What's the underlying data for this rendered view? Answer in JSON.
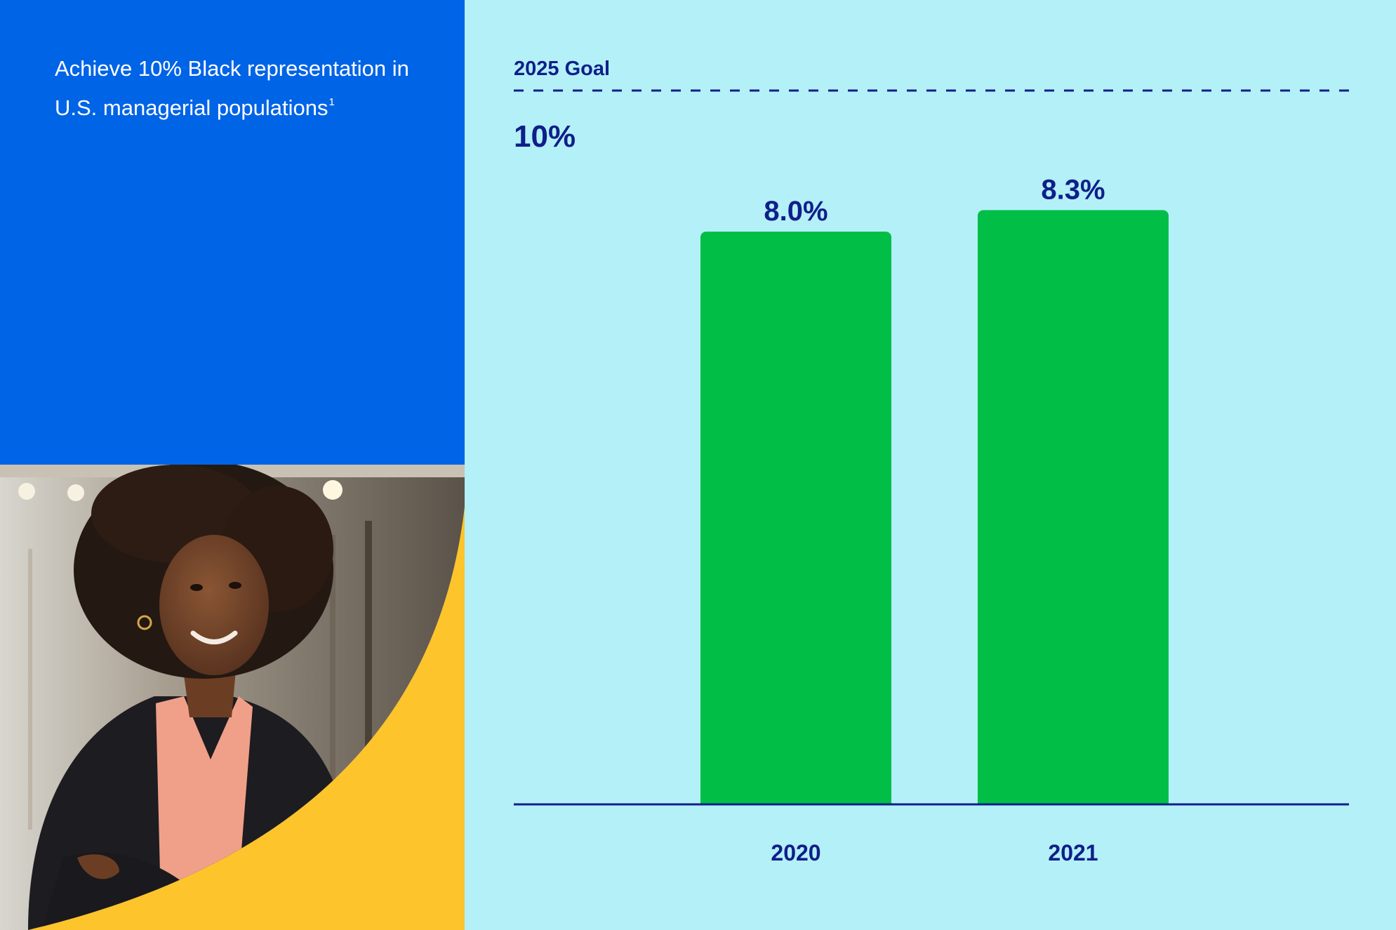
{
  "headline": {
    "text": "Achieve 10% Black representation in U.S. managerial populations",
    "footnote_marker": "1"
  },
  "colors": {
    "left_panel": "#0064e6",
    "chart_background": "#b4f0f7",
    "bar": "#00be46",
    "text_dark": "#0f1f8a",
    "accent_yellow": "#fec42c"
  },
  "photo": {
    "description_icon": "person-photo"
  },
  "chart_data": {
    "type": "bar",
    "categories": [
      "2020",
      "2021"
    ],
    "values": [
      8.0,
      8.3
    ],
    "value_labels": [
      "8.0%",
      "8.3%"
    ],
    "unit": "%",
    "ylim": [
      0,
      10
    ],
    "goal": {
      "label": "2025 Goal",
      "value": 10,
      "value_label": "10%"
    },
    "grid": false,
    "legend": "none"
  }
}
